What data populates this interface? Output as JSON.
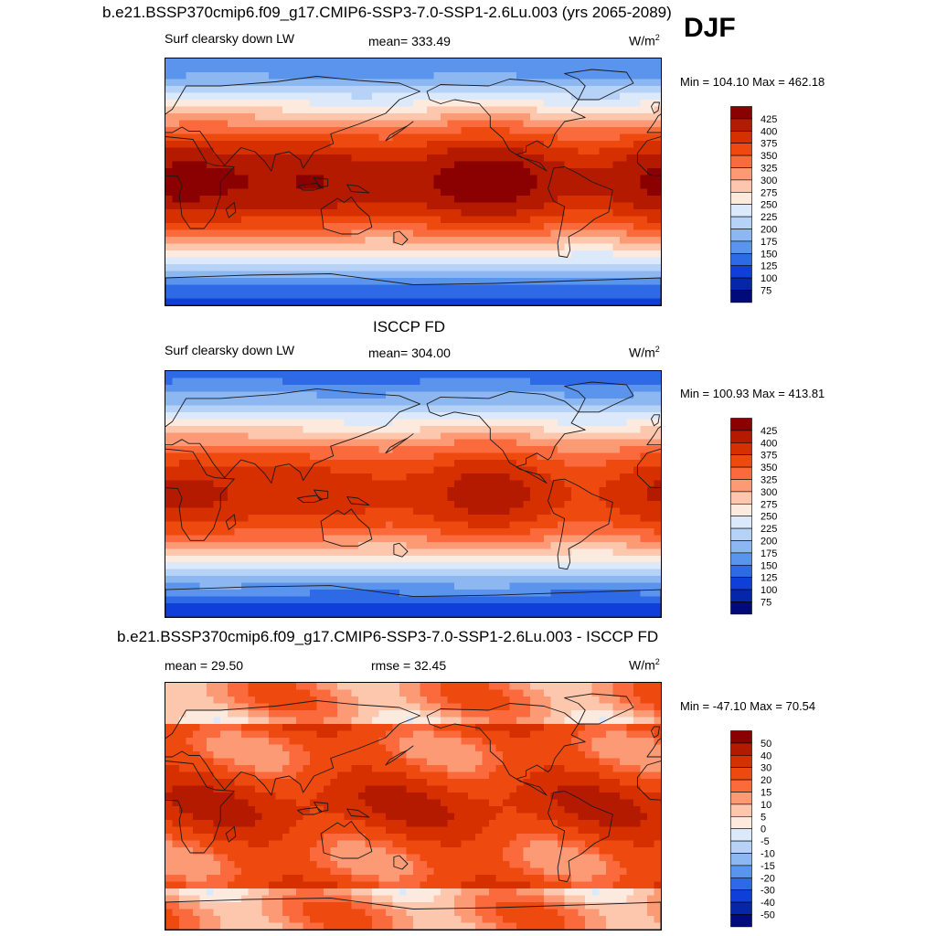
{
  "season": "DJF",
  "panels": [
    {
      "title": "b.e21.BSSP370cmip6.f09_g17.CMIP6-SSP3-7.0-SSP1-2.6Lu.003 (yrs 2065-2089)",
      "left_label": "Surf clearsky down LW",
      "center_label": "mean= 333.49",
      "units": "W/m",
      "units_sup": "2",
      "minmax": "Min = 104.10 Max = 462.18",
      "colorbar": {
        "levels": [
          "425",
          "400",
          "375",
          "350",
          "325",
          "300",
          "275",
          "250",
          "225",
          "200",
          "175",
          "150",
          "125",
          "100",
          "75"
        ],
        "colors": [
          "#8b0000",
          "#b31a00",
          "#d62f00",
          "#ee4a10",
          "#fb6a3c",
          "#fc9a76",
          "#fdc7ad",
          "#fdeadf",
          "#dbe9fb",
          "#b6d2f7",
          "#8db7f1",
          "#5b94ec",
          "#2f6ae6",
          "#0f3fd8",
          "#0626aa",
          "#000a7a"
        ]
      },
      "field": {
        "type": "absolute",
        "equator": 425,
        "pole_north": 150,
        "pole_south": 120
      }
    },
    {
      "title": "ISCCP FD",
      "left_label": "Surf clearsky down LW",
      "center_label": "mean= 304.00",
      "units": "W/m",
      "units_sup": "2",
      "minmax": "Min = 100.93 Max = 413.81",
      "colorbar": {
        "levels": [
          "425",
          "400",
          "375",
          "350",
          "325",
          "300",
          "275",
          "250",
          "225",
          "200",
          "175",
          "150",
          "125",
          "100",
          "75"
        ],
        "colors": [
          "#8b0000",
          "#b31a00",
          "#d62f00",
          "#ee4a10",
          "#fb6a3c",
          "#fc9a76",
          "#fdc7ad",
          "#fdeadf",
          "#dbe9fb",
          "#b6d2f7",
          "#8db7f1",
          "#5b94ec",
          "#2f6ae6",
          "#0f3fd8",
          "#0626aa",
          "#000a7a"
        ]
      },
      "field": {
        "type": "absolute",
        "equator": 395,
        "pole_north": 140,
        "pole_south": 110
      }
    },
    {
      "title": "b.e21.BSSP370cmip6.f09_g17.CMIP6-SSP3-7.0-SSP1-2.6Lu.003 - ISCCP FD",
      "left_label": "mean =  29.50",
      "center_label": "rmse =  32.45",
      "units": "W/m",
      "units_sup": "2",
      "minmax": "Min = -47.10 Max =  70.54",
      "colorbar": {
        "levels": [
          "50",
          "40",
          "30",
          "20",
          "15",
          "10",
          "5",
          "0",
          "-5",
          "-10",
          "-15",
          "-20",
          "-30",
          "-40",
          "-50"
        ],
        "colors": [
          "#8b0000",
          "#b31a00",
          "#d62f00",
          "#ee4a10",
          "#fb6a3c",
          "#fc9a76",
          "#fdc7ad",
          "#fdeadf",
          "#dbe9fb",
          "#b6d2f7",
          "#8db7f1",
          "#5b94ec",
          "#2f6ae6",
          "#0f3fd8",
          "#0626aa",
          "#000a7a"
        ]
      },
      "field": {
        "type": "difference",
        "base": 28
      }
    }
  ]
}
